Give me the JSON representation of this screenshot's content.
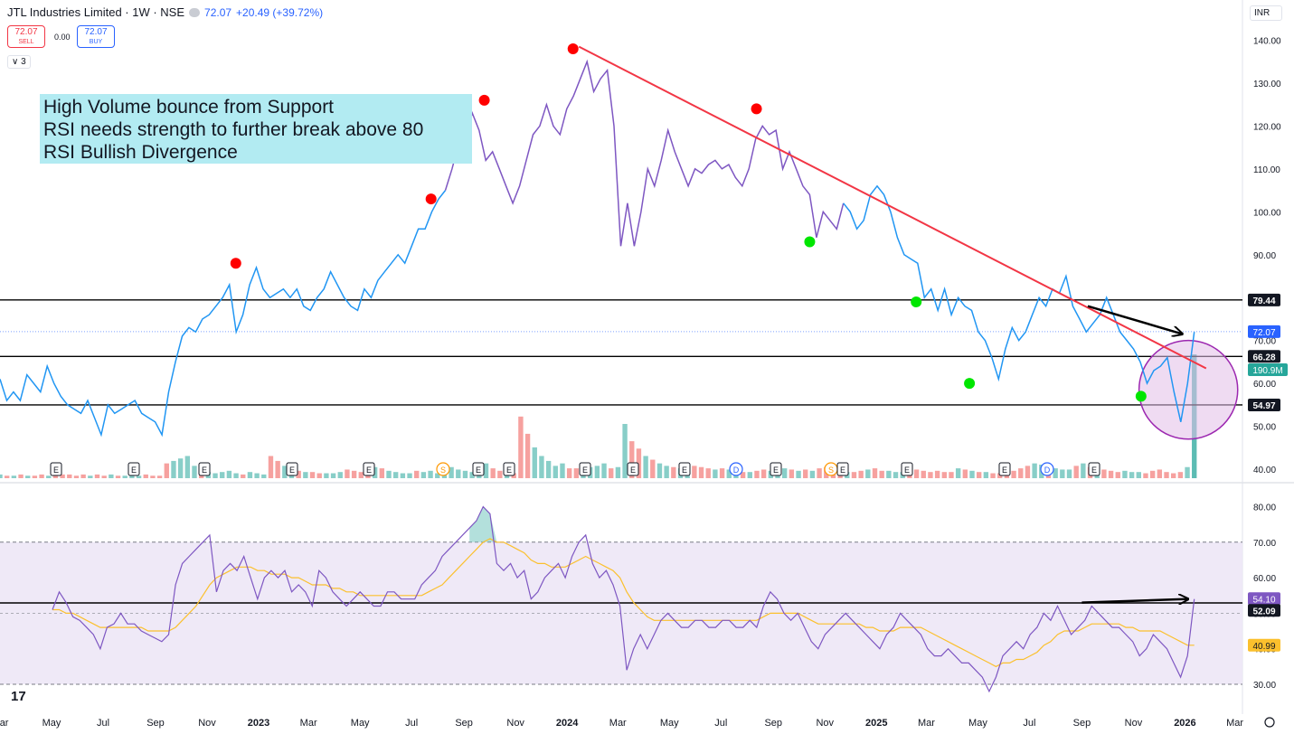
{
  "header": {
    "symbol": "JTL Industries Limited · 1W · NSE",
    "price": "72.07",
    "change": "+20.49 (+39.72%)",
    "currency": "INR",
    "eye_icon": "eye-icon"
  },
  "trade": {
    "sell_price": "72.07",
    "sell_label": "SELL",
    "buy_price": "72.07",
    "buy_label": "BUY",
    "spread": "0.00"
  },
  "indicator_toggle": "3",
  "annotation": {
    "lines": [
      "High Volume bounce from Support",
      "RSI needs strength to further break above 80",
      "RSI Bullish Divergence"
    ]
  },
  "logo_text": "17",
  "colors": {
    "price_line": "#2196f3",
    "price_line_alt": "#7e57c2",
    "trendline": "#f23645",
    "level": "#000000",
    "marker_red": "#ff0000",
    "marker_green": "#00e600",
    "vol_up": "#26a69a",
    "vol_down": "#ef5350",
    "rsi": "#7e57c2",
    "rsi_ma": "#fbc02d",
    "rsi_band": "#ede7f6",
    "circle_fill": "#e1bee7",
    "circle_stroke": "#9c27b0"
  },
  "chart_data": [
    {
      "type": "line",
      "title": "JTL Industries Limited · 1W · NSE",
      "ylim": [
        38,
        145
      ],
      "y_ticks": [
        "140.00",
        "130.00",
        "120.00",
        "110.00",
        "100.00",
        "90.00",
        "80.00",
        "70.00",
        "60.00",
        "50.00",
        "40.00"
      ],
      "x_ticks": [
        "Mar",
        "May",
        "Jul",
        "Sep",
        "Nov",
        "2023",
        "Mar",
        "May",
        "Jul",
        "Sep",
        "Nov",
        "2024",
        "Mar",
        "May",
        "Jul",
        "Sep",
        "Nov",
        "2025",
        "Mar",
        "May",
        "Jul",
        "Sep",
        "Nov",
        "2026",
        "Mar"
      ],
      "x_range": [
        "2022-03-01",
        "2026-03-10"
      ],
      "series": [
        {
          "values_close": [
            61,
            56,
            58,
            56,
            62,
            60,
            58,
            64,
            60,
            57,
            55,
            54,
            53,
            56,
            52,
            48,
            55,
            53,
            54,
            55,
            56,
            53,
            52,
            51,
            48,
            58,
            65,
            71,
            73,
            72,
            75,
            76,
            78,
            80,
            83,
            72,
            76,
            83,
            87,
            82,
            80,
            81,
            82,
            80,
            82,
            78,
            77,
            80,
            82,
            86,
            83,
            80,
            78,
            77,
            82,
            80,
            84,
            86,
            88,
            90,
            88,
            92,
            96,
            96,
            100,
            103,
            105,
            110,
            116,
            118,
            123,
            119,
            112,
            114,
            110,
            106,
            102,
            106,
            112,
            118,
            120,
            125,
            120,
            118,
            124,
            127,
            131,
            135,
            128,
            131,
            133,
            120,
            92,
            102,
            92,
            100,
            110,
            106,
            112,
            119,
            114,
            110,
            106,
            110,
            109,
            111,
            112,
            110,
            111,
            108,
            106,
            110,
            117,
            120,
            118,
            119,
            110,
            114,
            110,
            106,
            104,
            94,
            100,
            98,
            96,
            102,
            100,
            96,
            98,
            104,
            106,
            104,
            100,
            94,
            90,
            89,
            88,
            80,
            82,
            77,
            82,
            76,
            80,
            78,
            77,
            72,
            70,
            66,
            61,
            68,
            73,
            70,
            72,
            76,
            80,
            78,
            82,
            81,
            85,
            78,
            75,
            72,
            74,
            76,
            80,
            76,
            72,
            70,
            68,
            65,
            60,
            63,
            64,
            66,
            58,
            51,
            60,
            72
          ]
        }
      ],
      "volume": {
        "annotation": "190.9M",
        "values": [
          3,
          2,
          2,
          3,
          2,
          2,
          3,
          2,
          2,
          3,
          3,
          2,
          3,
          2,
          3,
          2,
          3,
          2,
          2,
          3,
          2,
          3,
          2,
          2,
          12,
          14,
          16,
          18,
          10,
          6,
          5,
          4,
          5,
          6,
          4,
          3,
          5,
          4,
          3,
          18,
          14,
          10,
          8,
          6,
          5,
          5,
          4,
          4,
          4,
          5,
          7,
          6,
          5,
          5,
          9,
          8,
          6,
          5,
          4,
          4,
          6,
          5,
          6,
          4,
          8,
          9,
          7,
          6,
          5,
          7,
          12,
          8,
          6,
          5,
          4,
          50,
          36,
          25,
          18,
          14,
          10,
          12,
          8,
          8,
          7,
          9,
          10,
          12,
          8,
          9,
          44,
          30,
          24,
          18,
          15,
          12,
          10,
          9,
          8,
          12,
          10,
          9,
          8,
          7,
          8,
          7,
          6,
          5,
          5,
          6,
          7,
          6,
          9,
          8,
          7,
          6,
          7,
          6,
          8,
          9,
          8,
          6,
          5,
          5,
          6,
          7,
          8,
          6,
          6,
          5,
          5,
          6,
          7,
          6,
          5,
          6,
          5,
          5,
          8,
          7,
          6,
          5,
          5,
          4,
          4,
          5,
          6,
          8,
          10,
          12,
          11,
          9,
          8,
          7,
          7,
          10,
          12,
          9,
          8,
          7,
          6,
          5,
          6,
          5,
          5,
          4,
          6,
          7,
          5,
          4,
          5,
          9,
          180
        ],
        "earnings_markers": [
          "E",
          "E",
          "E",
          "E",
          "E",
          "S",
          "E",
          "E",
          "E",
          "E",
          "E",
          "D",
          "E",
          "S",
          "E",
          "E",
          "E",
          "D",
          "E"
        ]
      },
      "levels": [
        79.44,
        66.28,
        54.97
      ],
      "level_labels": [
        "79.44",
        "66.28",
        "54.97"
      ],
      "price_label": "72.07",
      "trendline": {
        "start": {
          "x": "2024-01-15",
          "y": 138.5
        },
        "end": {
          "x": "2026-01-26",
          "y": 63.5
        }
      },
      "red_markers": [
        {
          "x": "2022-12-05",
          "y": 88
        },
        {
          "x": "2023-07-24",
          "y": 103
        },
        {
          "x": "2023-09-25",
          "y": 126
        },
        {
          "x": "2024-01-08",
          "y": 138
        },
        {
          "x": "2024-08-12",
          "y": 124
        }
      ],
      "green_markers": [
        {
          "x": "2024-10-14",
          "y": 93
        },
        {
          "x": "2025-02-17",
          "y": 79
        },
        {
          "x": "2025-04-21",
          "y": 60
        },
        {
          "x": "2025-11-10",
          "y": 57
        }
      ],
      "arrow": {
        "from": {
          "x": "2025-09-08",
          "y": 78
        },
        "to": {
          "x": "2025-12-29",
          "y": 71.5
        }
      },
      "circle": {
        "center": {
          "x": "2026-01-05",
          "y": 58.5
        },
        "radius_y": 11.5
      }
    },
    {
      "type": "line",
      "title": "RSI",
      "ylim": [
        28,
        84
      ],
      "y_ticks": [
        "80.00",
        "70.00",
        "60.00",
        "50.00",
        "40.00",
        "30.00"
      ],
      "band": [
        30,
        70
      ],
      "series": [
        {
          "values": [
            51,
            56,
            53,
            49,
            48,
            46,
            44,
            40,
            46,
            47,
            50,
            47,
            47,
            45,
            44,
            43,
            42,
            44,
            58,
            64,
            66,
            68,
            70,
            72,
            56,
            62,
            64,
            62,
            66,
            60,
            54,
            60,
            62,
            60,
            62,
            56,
            58,
            56,
            52,
            62,
            60,
            56,
            54,
            52,
            54,
            56,
            54,
            52,
            52,
            56,
            56,
            54,
            54,
            54,
            58,
            60,
            62,
            66,
            68,
            70,
            72,
            74,
            76,
            80,
            78,
            64,
            62,
            64,
            60,
            62,
            54,
            56,
            60,
            62,
            64,
            60,
            66,
            70,
            72,
            64,
            60,
            62,
            58,
            52,
            34,
            40,
            44,
            40,
            44,
            48,
            50,
            48,
            46,
            46,
            48,
            48,
            46,
            46,
            48,
            48,
            46,
            46,
            48,
            46,
            52,
            56,
            54,
            50,
            48,
            50,
            46,
            42,
            40,
            44,
            46,
            48,
            50,
            48,
            46,
            44,
            42,
            40,
            44,
            46,
            50,
            48,
            46,
            44,
            40,
            38,
            38,
            40,
            38,
            36,
            36,
            34,
            32,
            28,
            32,
            38,
            40,
            42,
            40,
            44,
            46,
            50,
            48,
            52,
            48,
            44,
            46,
            48,
            52,
            50,
            48,
            46,
            46,
            44,
            42,
            38,
            40,
            44,
            42,
            40,
            36,
            32,
            38,
            54
          ]
        },
        {
          "values": [
            51,
            51,
            50,
            50,
            49,
            48,
            47,
            46,
            46,
            46,
            46,
            46,
            46,
            46,
            45,
            45,
            45,
            45,
            46,
            48,
            50,
            52,
            55,
            58,
            60,
            61,
            62,
            63,
            63,
            63,
            62,
            62,
            61,
            61,
            61,
            60,
            60,
            59,
            58,
            58,
            58,
            57,
            57,
            56,
            56,
            55,
            55,
            55,
            55,
            55,
            55,
            55,
            55,
            55,
            55,
            56,
            57,
            58,
            60,
            62,
            64,
            66,
            68,
            70,
            71,
            70,
            70,
            69,
            68,
            67,
            65,
            64,
            64,
            63,
            63,
            63,
            64,
            65,
            66,
            65,
            64,
            63,
            62,
            60,
            56,
            53,
            51,
            49,
            48,
            48,
            48,
            48,
            48,
            48,
            48,
            48,
            48,
            48,
            48,
            48,
            48,
            48,
            48,
            48,
            49,
            50,
            50,
            50,
            50,
            50,
            49,
            48,
            47,
            47,
            47,
            47,
            47,
            47,
            47,
            46,
            46,
            45,
            45,
            45,
            46,
            46,
            46,
            46,
            45,
            44,
            43,
            42,
            41,
            40,
            39,
            38,
            37,
            36,
            35,
            36,
            36,
            37,
            37,
            38,
            39,
            41,
            42,
            44,
            45,
            45,
            45,
            46,
            47,
            47,
            47,
            47,
            47,
            46,
            46,
            45,
            45,
            45,
            45,
            44,
            43,
            42,
            41,
            41
          ]
        }
      ],
      "levels": [
        54.1,
        52.09
      ],
      "level_labels": [
        "54.10",
        "52.09"
      ],
      "ma_label": "40.99",
      "arrow": {
        "from": {
          "x": "2025-09-01",
          "y": 53
        },
        "to": {
          "x": "2026-01-05",
          "y": 54
        }
      }
    }
  ]
}
